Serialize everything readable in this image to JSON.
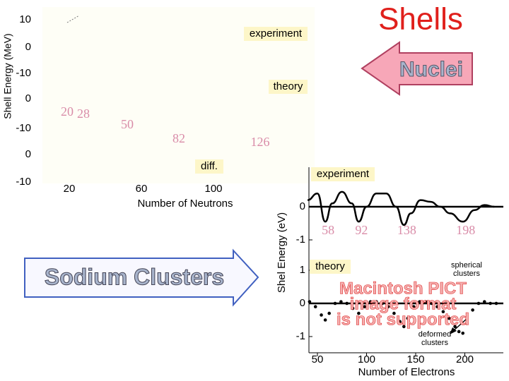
{
  "title": "Shells",
  "nuclei_label": "Nuclei",
  "clusters_label": "Sodium Clusters",
  "nuclear_panel": {
    "ylabel": "Shell Energy (MeV)",
    "xlabel": "Number of Neutrons",
    "yticks": [
      "10",
      "0",
      "-10",
      "0",
      "-10",
      "0",
      "-10"
    ],
    "xticks": [
      20,
      60,
      100
    ],
    "labels": [
      "experiment",
      "theory",
      "diff."
    ],
    "magic_numbers": [
      20,
      28,
      50,
      82,
      126
    ]
  },
  "cluster_panel": {
    "ylabel": "Shel Energy (eV)",
    "xlabel": "Number of Electrons",
    "xticks": [
      50,
      100,
      150,
      200
    ],
    "magic_numbers": [
      58,
      92,
      138,
      198
    ],
    "upper": {
      "label": "experiment",
      "yticks": [
        0,
        -1
      ],
      "x": [
        40,
        50,
        58,
        65,
        75,
        85,
        92,
        100,
        110,
        120,
        130,
        138,
        145,
        155,
        165,
        175,
        185,
        198,
        210,
        220,
        230
      ],
      "values": [
        0.2,
        0.4,
        -0.45,
        0.1,
        0.45,
        0.1,
        -0.45,
        0.0,
        0.4,
        0.4,
        0.0,
        -0.55,
        -0.2,
        0.2,
        0.15,
        0.0,
        -0.2,
        -0.45,
        -0.1,
        0.05,
        0.0
      ]
    },
    "lower": {
      "label": "theory",
      "yticks": [
        1,
        0,
        -1
      ],
      "x": [
        42,
        48,
        54,
        58,
        62,
        68,
        74,
        80,
        86,
        92,
        98,
        104,
        110,
        116,
        122,
        128,
        134,
        138,
        142,
        148,
        154,
        160,
        166,
        172,
        178,
        184,
        190,
        194,
        198,
        202,
        208,
        214,
        220,
        226,
        232
      ],
      "values": [
        0.05,
        -0.1,
        -0.35,
        -0.5,
        -0.3,
        0.0,
        0.05,
        0.0,
        -0.15,
        -0.3,
        -0.1,
        0.05,
        0.05,
        0.0,
        -0.1,
        -0.3,
        -0.55,
        -0.7,
        -0.45,
        -0.1,
        0.05,
        0.05,
        0.0,
        -0.1,
        -0.25,
        -0.45,
        -0.7,
        -0.85,
        -0.9,
        -0.6,
        -0.2,
        0.0,
        0.05,
        0.0,
        0.0
      ]
    },
    "placeholder": [
      "Macintosh PICT",
      "image format",
      "is not supported"
    ],
    "annotations": [
      [
        "spherical",
        "clusters"
      ],
      [
        "deformed",
        "clusters"
      ]
    ]
  }
}
